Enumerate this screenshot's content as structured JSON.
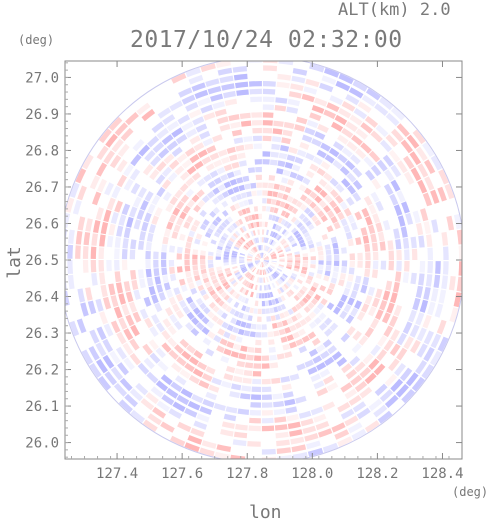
{
  "header": {
    "altitude_label": "ALT(km) 2.0",
    "timestamp": "2017/10/24 02:32:00"
  },
  "chart_data": {
    "type": "heatmap",
    "title": "2017/10/24 02:32:00",
    "subtitle": "ALT(km) 2.0",
    "xlabel": "lon",
    "ylabel": "lat",
    "x_unit": "(deg)",
    "y_unit": "(deg)",
    "xlim": [
      127.24,
      128.46
    ],
    "ylim": [
      25.955,
      27.045
    ],
    "x_ticks": [
      127.4,
      127.6,
      127.8,
      128.0,
      128.2,
      128.4
    ],
    "y_ticks": [
      26.0,
      26.1,
      26.2,
      26.3,
      26.4,
      26.5,
      26.6,
      26.7,
      26.8,
      26.9,
      27.0
    ],
    "x_tick_labels": [
      "127.4",
      "127.6",
      "127.8",
      "128.0",
      "128.2",
      "128.4"
    ],
    "y_tick_labels": [
      "26.0",
      "26.1",
      "26.2",
      "26.3",
      "26.4",
      "26.5",
      "26.6",
      "26.7",
      "26.8",
      "26.9",
      "27.0"
    ],
    "radar_center": {
      "lon": 127.845,
      "lat": 26.5
    },
    "coverage": "circular radar scan, azimuthally banded field",
    "colors": {
      "positive": "#ff9f9f",
      "negative": "#a6a6ff",
      "neutral": "#ffffff"
    },
    "grid": false
  }
}
